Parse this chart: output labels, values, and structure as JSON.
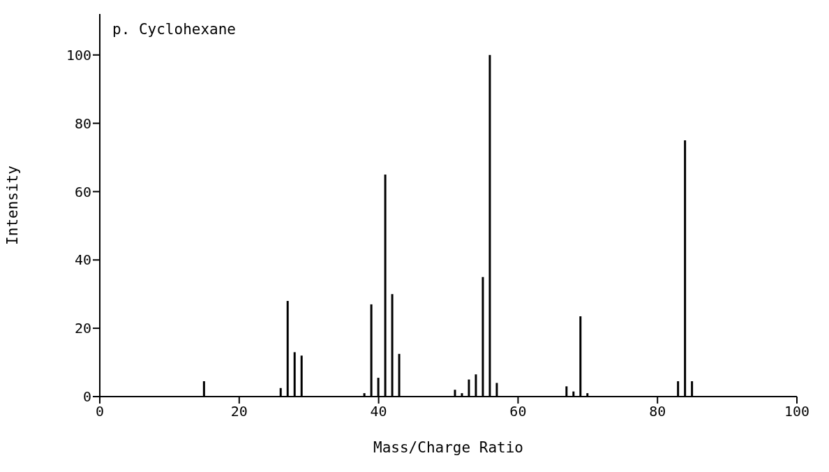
{
  "chart_data": {
    "type": "bar",
    "title": "p. Cyclohexane",
    "xlabel": "Mass/Charge Ratio",
    "ylabel": "Intensity",
    "x": [
      15,
      26,
      27,
      28,
      29,
      38,
      39,
      40,
      41,
      42,
      43,
      51,
      52,
      53,
      54,
      55,
      56,
      57,
      67,
      68,
      69,
      70,
      83,
      84,
      85
    ],
    "values": [
      4.5,
      2.5,
      28,
      13,
      12,
      1,
      27,
      5.5,
      65,
      30,
      12.5,
      2,
      1,
      5,
      6.5,
      35,
      100,
      4,
      3,
      1.5,
      23.5,
      1,
      4.5,
      75,
      4.5
    ],
    "color": "#000000",
    "xlim": [
      0,
      100
    ],
    "xticks": [
      0,
      20,
      40,
      60,
      80,
      100
    ],
    "ylim": [
      0,
      112
    ],
    "yticks": [
      0,
      20,
      40,
      60,
      80,
      100
    ],
    "grid": false,
    "legend": false
  }
}
